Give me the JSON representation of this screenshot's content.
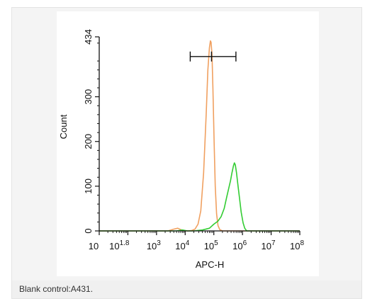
{
  "figure": {
    "caption": "Blank control:A431."
  },
  "chart_data": {
    "type": "line",
    "xlabel": "APC-H",
    "ylabel": "Count",
    "x_scale": "log10",
    "xlim": [
      10,
      100000000
    ],
    "ylim": [
      0,
      434
    ],
    "x_ticks": [
      {
        "value": 10,
        "base": "10",
        "exp": ""
      },
      {
        "value": 63,
        "base": "10",
        "exp": "1.8"
      },
      {
        "value": 1000,
        "base": "10",
        "exp": "3"
      },
      {
        "value": 10000,
        "base": "10",
        "exp": "4"
      },
      {
        "value": 100000,
        "base": "10",
        "exp": "5"
      },
      {
        "value": 1000000,
        "base": "10",
        "exp": "6"
      },
      {
        "value": 10000000,
        "base": "10",
        "exp": "7"
      },
      {
        "value": 100000000,
        "base": "10",
        "exp": "8"
      }
    ],
    "y_ticks": [
      "0",
      "100",
      "200",
      "300",
      "434"
    ],
    "y_tick_values": [
      0,
      100,
      200,
      300,
      434
    ],
    "gate": {
      "x_start": 15000,
      "x_end": 590000,
      "x_mid": 83000,
      "y": 390
    },
    "series": [
      {
        "color": "#f0a060",
        "points": [
          [
            10,
            0
          ],
          [
            1000,
            0
          ],
          [
            2500,
            0
          ],
          [
            4000,
            4
          ],
          [
            5500,
            6
          ],
          [
            7000,
            3
          ],
          [
            9000,
            0
          ],
          [
            12000,
            0
          ],
          [
            17000,
            1
          ],
          [
            22000,
            4
          ],
          [
            28000,
            15
          ],
          [
            35000,
            45
          ],
          [
            44000,
            130
          ],
          [
            54000,
            260
          ],
          [
            62000,
            360
          ],
          [
            70000,
            410
          ],
          [
            76000,
            425
          ],
          [
            80000,
            422
          ],
          [
            86000,
            395
          ],
          [
            93000,
            320
          ],
          [
            102000,
            200
          ],
          [
            112000,
            100
          ],
          [
            125000,
            38
          ],
          [
            140000,
            12
          ],
          [
            160000,
            3
          ],
          [
            200000,
            0
          ],
          [
            1000000,
            0
          ],
          [
            100000000,
            0
          ]
        ]
      },
      {
        "color": "#33cc33",
        "points": [
          [
            10,
            0
          ],
          [
            5000,
            0
          ],
          [
            8000,
            2
          ],
          [
            12000,
            0
          ],
          [
            20000,
            0
          ],
          [
            40000,
            2
          ],
          [
            70000,
            6
          ],
          [
            100000,
            15
          ],
          [
            140000,
            22
          ],
          [
            180000,
            32
          ],
          [
            230000,
            50
          ],
          [
            280000,
            75
          ],
          [
            330000,
            95
          ],
          [
            380000,
            112
          ],
          [
            430000,
            130
          ],
          [
            480000,
            145
          ],
          [
            520000,
            152
          ],
          [
            560000,
            148
          ],
          [
            620000,
            130
          ],
          [
            700000,
            100
          ],
          [
            800000,
            70
          ],
          [
            900000,
            42
          ],
          [
            1050000,
            18
          ],
          [
            1200000,
            6
          ],
          [
            1400000,
            0
          ],
          [
            100000000,
            0
          ]
        ]
      }
    ]
  }
}
